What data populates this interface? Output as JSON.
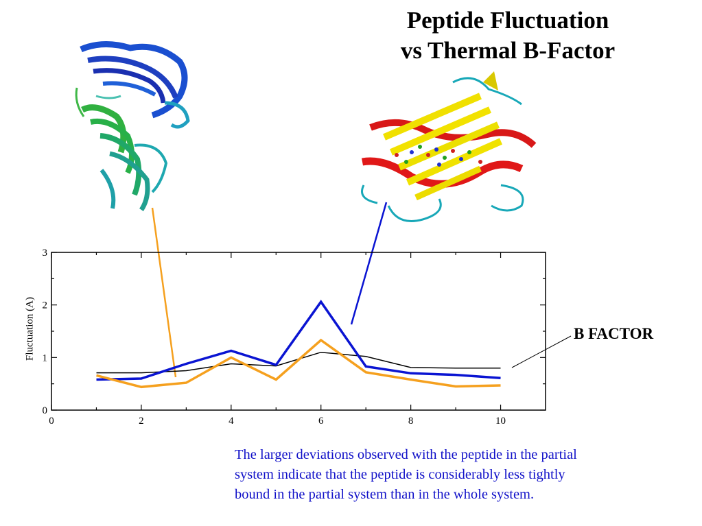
{
  "title": {
    "line1": "Peptide Fluctuation",
    "line2": "vs Thermal B-Factor"
  },
  "callout_label": "B FACTOR",
  "caption": {
    "line1": "The larger deviations observed with the peptide in the partial",
    "line2": "system indicate that the peptide is considerably less tightly",
    "line3": "bound in the partial system than in the whole system."
  },
  "colors": {
    "b_factor": "#000000",
    "blue_series": "#0a14d2",
    "orange_series": "#f5a01e",
    "caption": "#1010c8"
  },
  "chart_data": {
    "type": "line",
    "title": "",
    "xlabel": "",
    "ylabel": "Fluctuation (A)",
    "xlim": [
      0,
      11
    ],
    "ylim": [
      0,
      3
    ],
    "x_ticks": [
      0,
      2,
      4,
      6,
      8,
      10
    ],
    "y_ticks": [
      0,
      1,
      2,
      3
    ],
    "grid": false,
    "series": [
      {
        "name": "B FACTOR",
        "color": "#000000",
        "x": [
          1,
          2,
          3,
          4,
          5,
          6,
          7,
          8,
          9,
          10
        ],
        "y": [
          0.71,
          0.71,
          0.75,
          0.88,
          0.84,
          1.1,
          1.02,
          0.81,
          0.8,
          0.8
        ]
      },
      {
        "color": "#0a14d2",
        "x": [
          1,
          2,
          3,
          4,
          5,
          6,
          7,
          8,
          9,
          10
        ],
        "y": [
          0.58,
          0.6,
          0.88,
          1.13,
          0.86,
          2.06,
          0.83,
          0.7,
          0.67,
          0.61
        ]
      },
      {
        "color": "#f5a01e",
        "x": [
          1,
          2,
          3,
          4,
          5,
          6,
          7,
          8,
          9,
          10
        ],
        "y": [
          0.66,
          0.44,
          0.52,
          1.0,
          0.58,
          1.33,
          0.72,
          0.58,
          0.45,
          0.47
        ]
      }
    ]
  }
}
